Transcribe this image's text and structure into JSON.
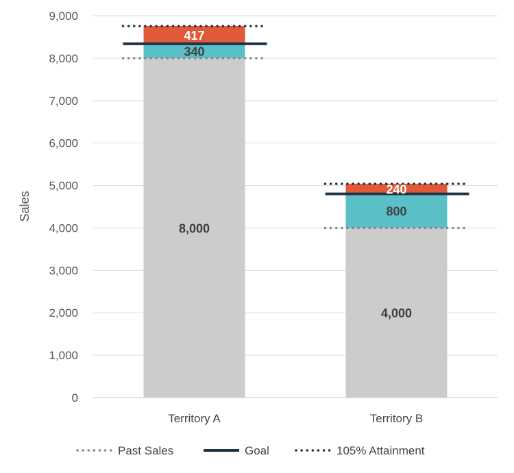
{
  "chart_data": {
    "type": "bar",
    "stacked": true,
    "categories": [
      "Territory A",
      "Territory B"
    ],
    "series": [
      {
        "values": [
          8000,
          4000
        ],
        "color": "#cccccc",
        "label_color": "#404040"
      },
      {
        "values": [
          340,
          800
        ],
        "color": "#5bbfc8",
        "label_color": "#404040"
      },
      {
        "values": [
          417,
          240
        ],
        "color": "#e05a3a",
        "label_color": "#ffffff"
      }
    ],
    "reference_lines": [
      {
        "name": "Past Sales",
        "values": [
          8000,
          4000
        ],
        "color": "#888888",
        "style": "dotted"
      },
      {
        "name": "Goal",
        "values": [
          8340,
          4800
        ],
        "color": "#1e3344",
        "style": "solid"
      },
      {
        "name": "105% Attainment",
        "values": [
          8757,
          5040
        ],
        "color": "#1e3344",
        "style": "dotted"
      }
    ],
    "ylabel": "Sales",
    "ylim": [
      0,
      9000
    ],
    "yticks": [
      0,
      1000,
      2000,
      3000,
      4000,
      5000,
      6000,
      7000,
      8000,
      9000
    ],
    "ytick_labels": [
      "0",
      "1,000",
      "2,000",
      "3,000",
      "4,000",
      "5,000",
      "6,000",
      "7,000",
      "8,000",
      "9,000"
    ],
    "data_labels": [
      [
        "8,000",
        "340",
        "417"
      ],
      [
        "4,000",
        "800",
        "240"
      ]
    ],
    "grid": true,
    "legend_position": "bottom"
  }
}
